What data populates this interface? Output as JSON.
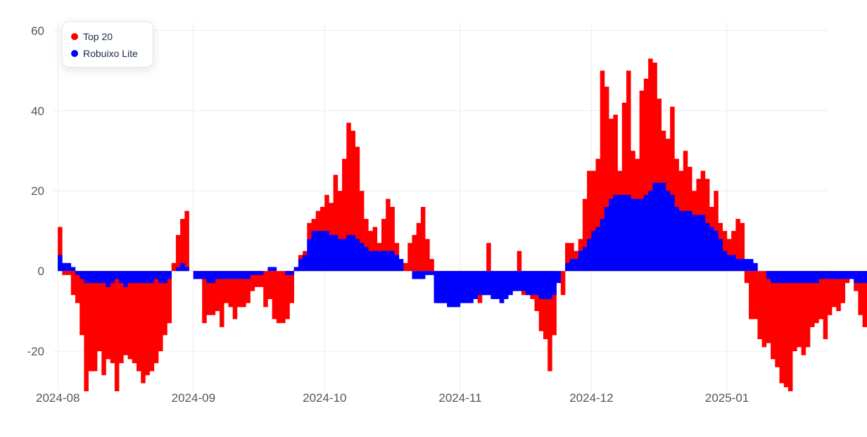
{
  "chart_data": {
    "type": "bar",
    "stacking": "overlay",
    "legend": "top-left",
    "grid": true,
    "ylim": [
      -30,
      62
    ],
    "xlim": [
      "2024-07-31",
      "2025-01-24"
    ],
    "y_ticks": [
      60,
      40,
      20,
      0,
      -20
    ],
    "x_ticks": [
      "2024-08",
      "2024-09",
      "2024-10",
      "2024-11",
      "2024-12",
      "2025-01"
    ],
    "x_start": "2024-08-01",
    "bar_interval": "day",
    "series": [
      {
        "name": "Top 20",
        "color": "#ff0000",
        "values": [
          11,
          -1,
          -1,
          -6,
          -8,
          -16,
          -30,
          -25,
          -25,
          -20,
          -26,
          -22,
          -23,
          -31,
          -23,
          -21,
          -22,
          -23,
          -25,
          -28,
          -26,
          -25,
          -23,
          -20,
          -16,
          -13,
          2,
          9,
          13,
          15,
          0,
          -2,
          -2,
          -13,
          -11,
          -11,
          -10,
          -14,
          -8,
          -9,
          -12,
          -9,
          -9,
          -8,
          -5,
          -4,
          -4,
          -9,
          -7,
          -12,
          -13,
          -13,
          -12,
          -8,
          1,
          4,
          5,
          12,
          13,
          15,
          16,
          19,
          17,
          24,
          20,
          28,
          37,
          35,
          31,
          20,
          13,
          10,
          11,
          7,
          13,
          18,
          16,
          7,
          1,
          2,
          7,
          9,
          12,
          16,
          8,
          3,
          -6,
          -8,
          -8,
          -9,
          -9,
          -8,
          -7,
          -6,
          -6,
          -7,
          -8,
          -6,
          7,
          -7,
          -6,
          -8,
          -7,
          -5,
          -5,
          5,
          -6,
          -6,
          -7,
          -10,
          -15,
          -17,
          -25,
          -16,
          0,
          -6,
          7,
          7,
          5,
          8,
          18,
          25,
          25,
          28,
          50,
          46,
          38,
          39,
          25,
          42,
          50,
          30,
          28,
          45,
          48,
          53,
          52,
          43,
          35,
          33,
          41,
          28,
          25,
          30,
          26,
          20,
          23,
          25,
          23,
          16,
          20,
          12,
          10,
          8,
          10,
          13,
          12,
          -3,
          -12,
          -12,
          -17,
          -19,
          -18,
          -22,
          -24,
          -28,
          -29,
          -31,
          -20,
          -19,
          -21,
          -19,
          -14,
          -13,
          -12,
          -17,
          -11,
          -9,
          -10,
          -8,
          -3,
          -1,
          -5,
          -11,
          -14,
          -13,
          -4,
          1,
          6,
          1,
          -2,
          -4
        ],
        "values_dense_estimate": true
      },
      {
        "name": "Robuixo Lite",
        "color": "#0000ff",
        "values": [
          4,
          2,
          2,
          1,
          -1,
          -2,
          -3,
          -3,
          -3,
          -3,
          -3,
          -4,
          -3,
          -2,
          -3,
          -4,
          -3,
          -3,
          -3,
          -3,
          -3,
          -3,
          -2,
          -3,
          -3,
          -2,
          0,
          1,
          2,
          1,
          0,
          -2,
          -2,
          -2,
          -3,
          -3,
          -2,
          -2,
          -2,
          -2,
          -2,
          -2,
          -2,
          -2,
          -1,
          -1,
          -1,
          0,
          1,
          1,
          0,
          0,
          -1,
          -1,
          1,
          3,
          4,
          8,
          10,
          10,
          10,
          10,
          9,
          9,
          8,
          8,
          9,
          9,
          8,
          7,
          6,
          5,
          5,
          5,
          5,
          5,
          5,
          4,
          3,
          0,
          0,
          -2,
          -2,
          -2,
          -1,
          -1,
          -8,
          -8,
          -8,
          -9,
          -9,
          -9,
          -8,
          -8,
          -8,
          -7,
          -6,
          -6,
          -6,
          -7,
          -7,
          -8,
          -7,
          -6,
          -5,
          -5,
          -5,
          -6,
          -6,
          -6,
          -7,
          -7,
          -7,
          -6,
          -3,
          0,
          2,
          3,
          3,
          5,
          6,
          8,
          10,
          11,
          13,
          16,
          18,
          19,
          19,
          19,
          19,
          18,
          18,
          18,
          19,
          20,
          22,
          22,
          22,
          20,
          19,
          16,
          15,
          15,
          15,
          14,
          14,
          14,
          12,
          11,
          10,
          8,
          5,
          4,
          4,
          3,
          3,
          3,
          3,
          2,
          0,
          0,
          -2,
          -3,
          -3,
          -3,
          -3,
          -3,
          -3,
          -3,
          -3,
          -3,
          -3,
          -3,
          -2,
          -2,
          -2,
          -2,
          -2,
          -2,
          -2,
          -2,
          -3,
          -3,
          -3,
          -3,
          -3,
          -3,
          -2,
          -1,
          -1,
          0,
          0,
          0,
          0,
          0
        ]
      }
    ]
  },
  "legend": {
    "items": [
      {
        "label": "Top 20",
        "color": "#ff0000"
      },
      {
        "label": "Robuixo Lite",
        "color": "#0000ff"
      }
    ]
  }
}
